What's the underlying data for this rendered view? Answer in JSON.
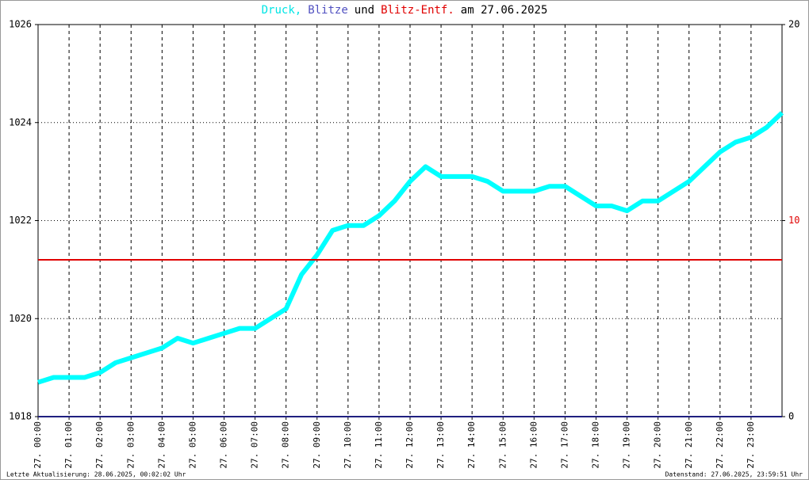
{
  "chart_data": {
    "type": "line",
    "title_segments": [
      {
        "text": "Druck,",
        "color": "#00e5e5"
      },
      {
        "text": "Blitze",
        "color": "#5050c0"
      },
      {
        "text": "und",
        "color": "#000000"
      },
      {
        "text": "Blitz-Entf.",
        "color": "#e00000"
      },
      {
        "text": "am 27.06.2025",
        "color": "#000000"
      }
    ],
    "footer_left": "Letzte Aktualisierung: 28.06.2025, 00:02:02 Uhr",
    "footer_right": "Datenstand: 27.06.2025, 23:59:51 Uhr",
    "xlim": [
      0,
      24
    ],
    "xticks": [
      {
        "value": 0,
        "label": "27. 00:00"
      },
      {
        "value": 1,
        "label": "27. 01:00"
      },
      {
        "value": 2,
        "label": "27. 02:00"
      },
      {
        "value": 3,
        "label": "27. 03:00"
      },
      {
        "value": 4,
        "label": "27. 04:00"
      },
      {
        "value": 5,
        "label": "27. 05:00"
      },
      {
        "value": 6,
        "label": "27. 06:00"
      },
      {
        "value": 7,
        "label": "27. 07:00"
      },
      {
        "value": 8,
        "label": "27. 08:00"
      },
      {
        "value": 9,
        "label": "27. 09:00"
      },
      {
        "value": 10,
        "label": "27. 10:00"
      },
      {
        "value": 11,
        "label": "27. 11:00"
      },
      {
        "value": 12,
        "label": "27. 12:00"
      },
      {
        "value": 13,
        "label": "27. 13:00"
      },
      {
        "value": 14,
        "label": "27. 14:00"
      },
      {
        "value": 15,
        "label": "27. 15:00"
      },
      {
        "value": 16,
        "label": "27. 16:00"
      },
      {
        "value": 17,
        "label": "27. 17:00"
      },
      {
        "value": 18,
        "label": "27. 18:00"
      },
      {
        "value": 19,
        "label": "27. 19:00"
      },
      {
        "value": 20,
        "label": "27. 20:00"
      },
      {
        "value": 21,
        "label": "27. 21:00"
      },
      {
        "value": 22,
        "label": "27. 22:00"
      },
      {
        "value": 23,
        "label": "27. 23:00"
      }
    ],
    "ylim": [
      1018,
      1026
    ],
    "yticks": [
      1018,
      1020,
      1022,
      1024,
      1026
    ],
    "y2lim": [
      0,
      20
    ],
    "y2ticks": [
      0,
      10,
      20
    ],
    "y2tick_colors": [
      "#000000",
      "#e00000",
      "#000000"
    ],
    "grid": true,
    "series": [
      {
        "color": "#00ffff",
        "x": [
          0,
          0.5,
          1,
          1.5,
          2,
          2.5,
          3,
          3.5,
          4,
          4.5,
          5,
          5.5,
          6,
          6.5,
          7,
          7.5,
          8,
          8.5,
          9,
          9.5,
          10,
          10.5,
          11,
          11.5,
          12,
          12.5,
          13,
          13.5,
          14,
          14.5,
          15,
          15.5,
          16,
          16.5,
          17,
          17.5,
          18,
          18.5,
          19,
          19.5,
          20,
          20.5,
          21,
          21.5,
          22,
          22.5,
          23,
          23.5,
          24
        ],
        "values": [
          1018.7,
          1018.8,
          1018.8,
          1018.8,
          1018.9,
          1019.1,
          1019.2,
          1019.3,
          1019.4,
          1019.6,
          1019.5,
          1019.6,
          1019.7,
          1019.8,
          1019.8,
          1020.0,
          1020.2,
          1020.9,
          1021.3,
          1021.8,
          1021.9,
          1021.9,
          1022.1,
          1022.4,
          1022.8,
          1023.1,
          1022.9,
          1022.9,
          1022.9,
          1022.8,
          1022.6,
          1022.6,
          1022.6,
          1022.7,
          1022.7,
          1022.5,
          1022.3,
          1022.3,
          1022.2,
          1022.4,
          1022.4,
          1022.6,
          1022.8,
          1023.1,
          1023.4,
          1023.6,
          1023.7,
          1023.9,
          1024.2
        ]
      },
      {
        "color": "#202080",
        "axis": "y2",
        "x": [
          0,
          24
        ],
        "values": [
          0,
          0
        ]
      },
      {
        "color": "#e00000",
        "axis": "y2",
        "x": [
          0,
          24
        ],
        "values": [
          8,
          8
        ]
      }
    ]
  }
}
